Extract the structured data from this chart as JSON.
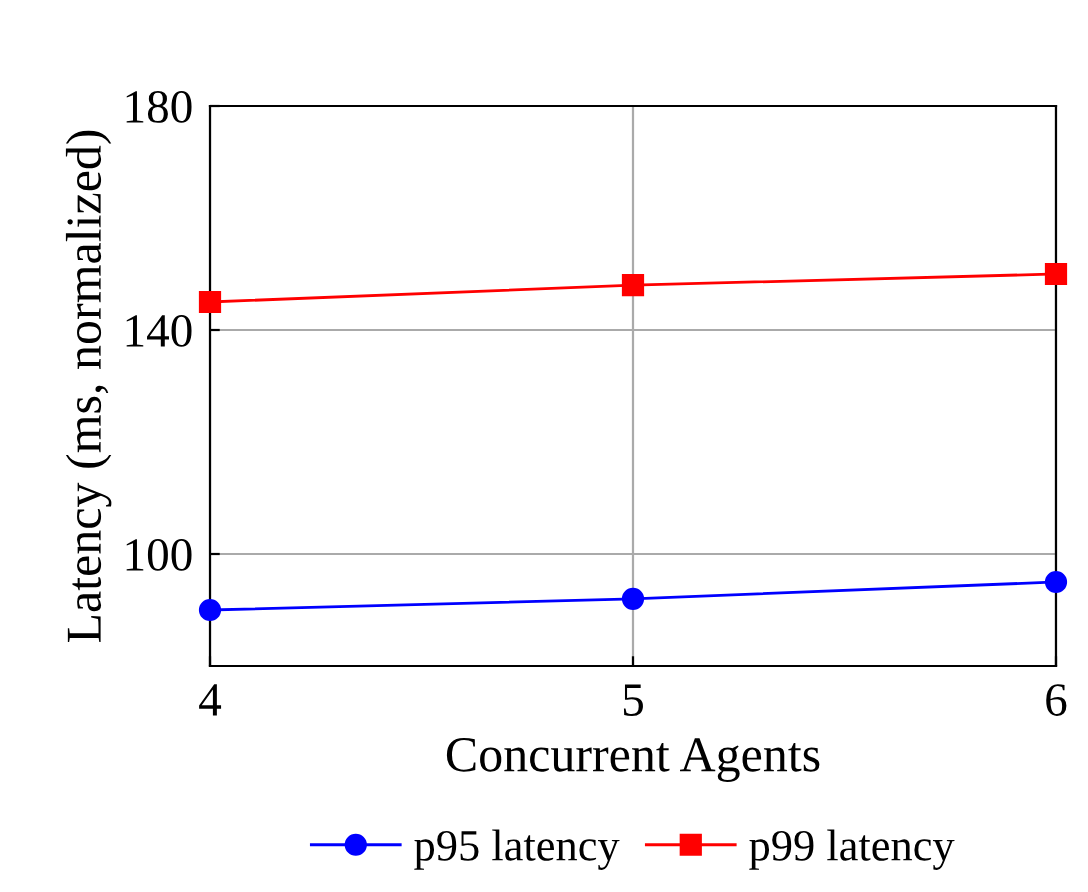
{
  "chart_data": {
    "type": "line",
    "xlabel": "Concurrent Agents",
    "ylabel": "Latency (ms, normalized)",
    "x": [
      4,
      5,
      6
    ],
    "series": [
      {
        "name": "p95 latency",
        "color": "#0000ff",
        "marker": "circle",
        "values": [
          90,
          92,
          95
        ]
      },
      {
        "name": "p99 latency",
        "color": "#ff0000",
        "marker": "square",
        "values": [
          145,
          148,
          150
        ]
      }
    ],
    "xlim": [
      4,
      6
    ],
    "xticks": [
      4,
      5,
      6
    ],
    "ylim": [
      80,
      180
    ],
    "yticks": [
      100,
      140,
      180
    ],
    "grid": true,
    "legend": "bottom",
    "line_style": "solid"
  }
}
